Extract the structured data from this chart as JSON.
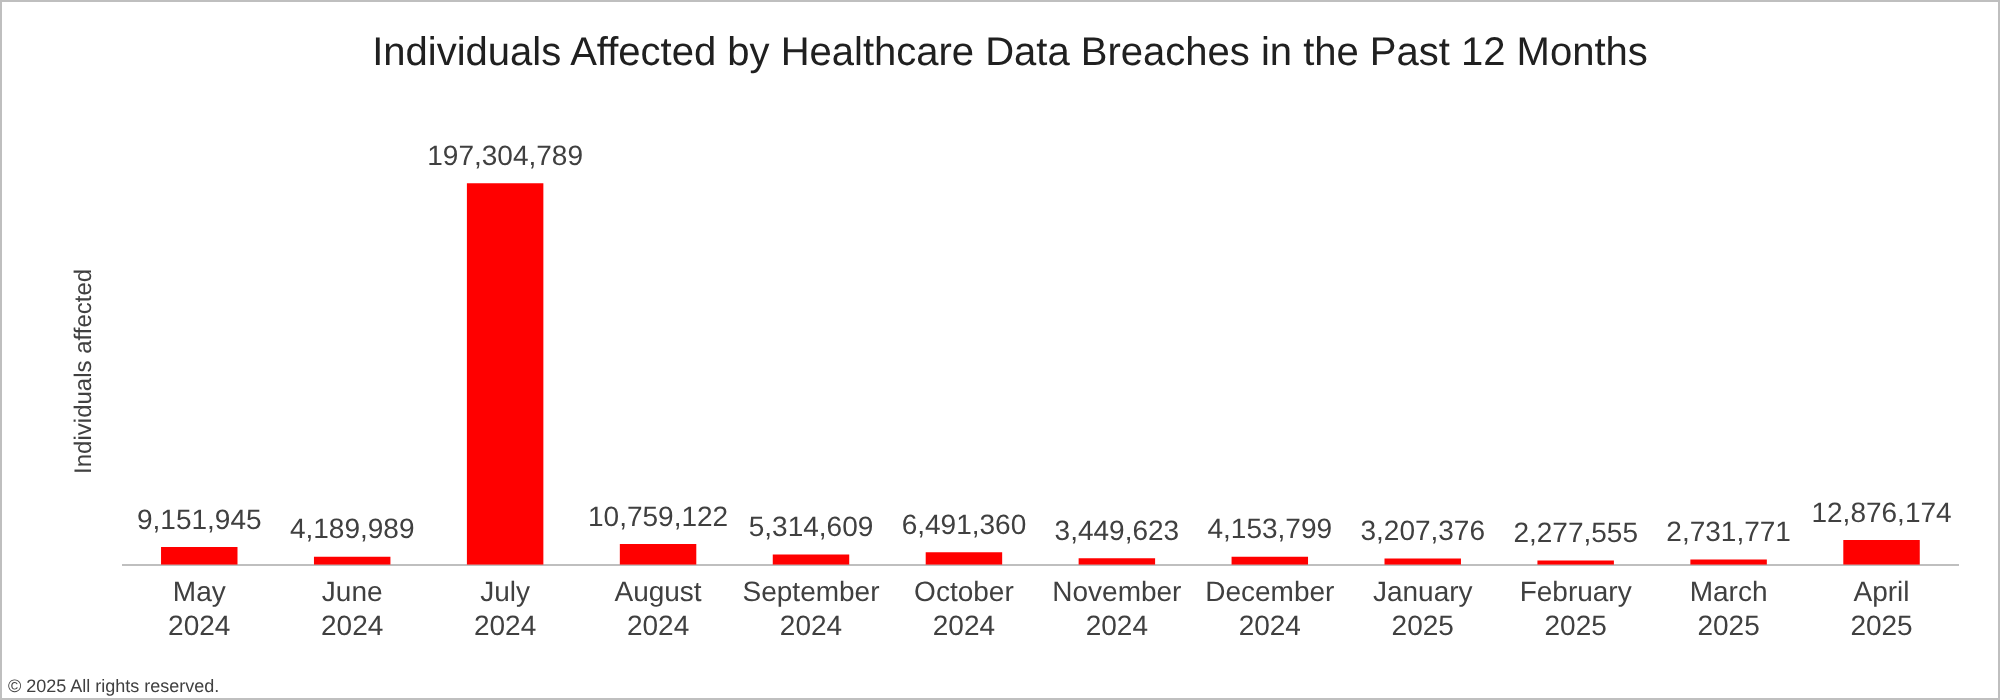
{
  "chart_data": {
    "type": "bar",
    "title": "Individuals Affected by Healthcare Data Breaches in the Past 12 Months",
    "ylabel": "Individuals affected",
    "categories": [
      "May 2024",
      "June 2024",
      "July 2024",
      "August 2024",
      "September 2024",
      "October 2024",
      "November 2024",
      "December 2024",
      "January 2025",
      "February 2025",
      "March 2025",
      "April 2025"
    ],
    "values": [
      9151945,
      4189989,
      197304789,
      10759122,
      5314609,
      6491360,
      3449623,
      4153799,
      3207376,
      2277555,
      2731771,
      12876174
    ],
    "value_labels": [
      "9,151,945",
      "4,189,989",
      "197,304,789",
      "10,759,122",
      "5,314,609",
      "6,491,360",
      "3,449,623",
      "4,153,799",
      "3,207,376",
      "2,277,555",
      "2,731,771",
      "12,876,174"
    ],
    "color": "#ff0000",
    "grid": false,
    "legend": false,
    "annotations": [
      "© 2025 All rights reserved."
    ]
  }
}
